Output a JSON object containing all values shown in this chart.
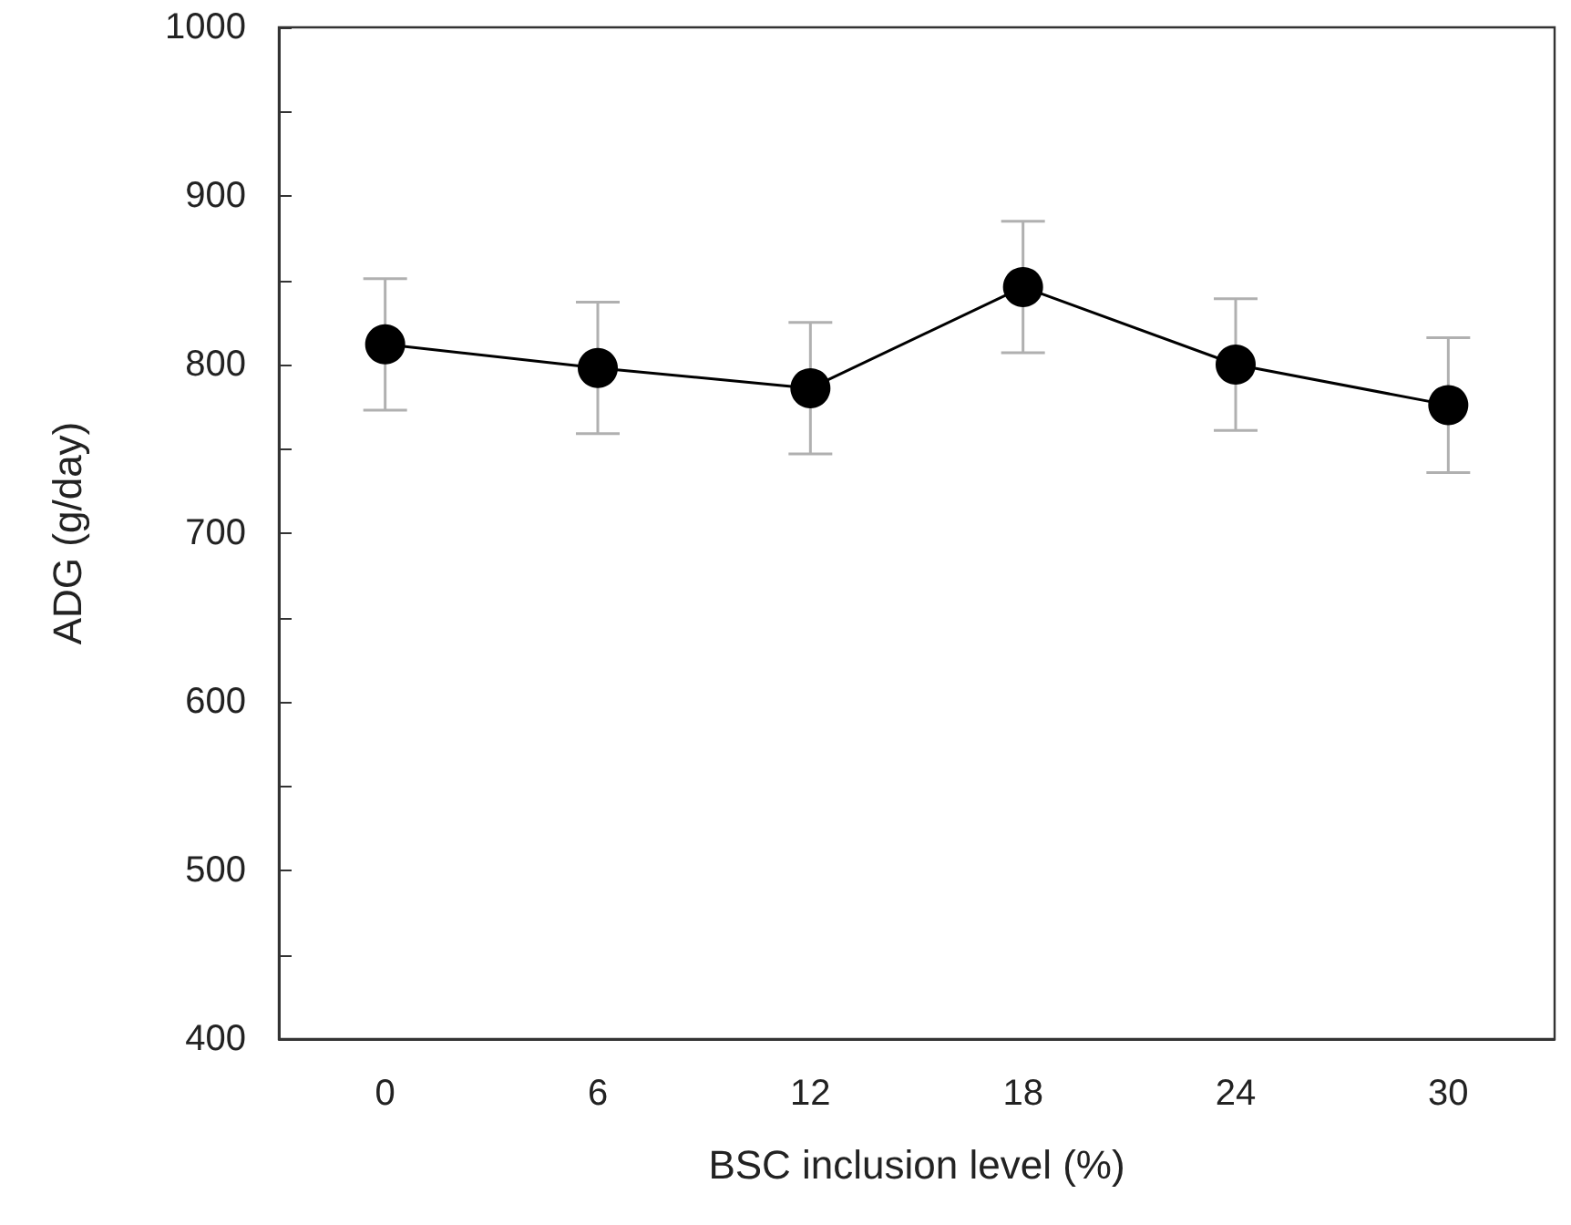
{
  "chart_data": {
    "type": "line",
    "xlabel": "BSC inclusion level (%)",
    "ylabel": "ADG (g/day)",
    "categories": [
      "0",
      "6",
      "12",
      "18",
      "24",
      "30"
    ],
    "series": [
      {
        "color": "#000000",
        "values": [
          812,
          798,
          786,
          846,
          800,
          776
        ],
        "errors": [
          39,
          39,
          39,
          39,
          39,
          40
        ]
      }
    ],
    "ylim": [
      400,
      1000
    ],
    "yticks": [
      400,
      {
        "value": 450,
        "label": null
      },
      500,
      {
        "value": 550,
        "label": null
      },
      600,
      {
        "value": 650,
        "label": null
      },
      700,
      {
        "value": 750,
        "label": null
      },
      800,
      {
        "value": 850,
        "label": null
      },
      900,
      {
        "value": 950,
        "label": null
      },
      1000
    ],
    "grid": false,
    "marker": "circle",
    "line_style": "solid"
  }
}
